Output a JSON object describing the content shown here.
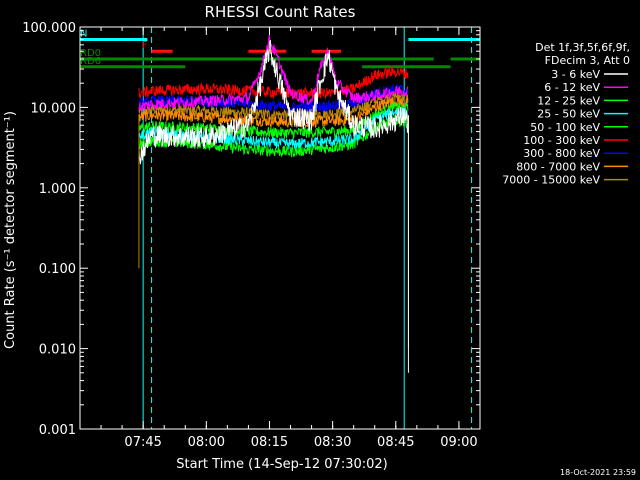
{
  "chart_data": {
    "type": "line",
    "title": "RHESSI Count Rates",
    "xlabel": "Start Time (14-Sep-12 07:30:02)",
    "ylabel": "Count Rate (s⁻¹ detector segment⁻¹)",
    "yscale": "log",
    "ylim": [
      0.001,
      100
    ],
    "xlim": [
      "07:30",
      "09:05"
    ],
    "x_ticks": [
      "07:45",
      "08:00",
      "08:15",
      "08:30",
      "08:45",
      "09:00"
    ],
    "y_ticks": [
      "0.001",
      "0.010",
      "0.100",
      "1.000",
      "10.000",
      "100.000"
    ],
    "legend_header": [
      "Det 1f,3f,5f,6f,9f,",
      "FDecim 3, Att 0"
    ],
    "footer": "18-Oct-2021 23:59",
    "series": [
      {
        "name": "3 - 6 keV",
        "color": "#ffffff",
        "x": [
          "07:44",
          "07:45",
          "07:47",
          "08:00",
          "08:10",
          "08:13",
          "08:15",
          "08:17",
          "08:20",
          "08:25",
          "08:27",
          "08:29",
          "08:31",
          "08:35",
          "08:40",
          "08:45",
          "08:47",
          "08:48"
        ],
        "y": [
          2.5,
          3.0,
          4.5,
          4.2,
          6.0,
          20,
          55,
          25,
          8,
          7,
          20,
          45,
          15,
          6,
          5.5,
          7,
          8,
          6
        ]
      },
      {
        "name": "6 - 12 keV",
        "color": "#ff00ff",
        "x": [
          "07:44",
          "07:47",
          "08:00",
          "08:10",
          "08:13",
          "08:15",
          "08:17",
          "08:20",
          "08:25",
          "08:27",
          "08:29",
          "08:31",
          "08:35",
          "08:40",
          "08:45",
          "08:48"
        ],
        "y": [
          10,
          11,
          12,
          13,
          30,
          70,
          40,
          15,
          12,
          30,
          50,
          20,
          13,
          14,
          16,
          16
        ]
      },
      {
        "name": "12 - 25 keV",
        "color": "#00ff00",
        "x": [
          "07:44",
          "07:47",
          "08:00",
          "08:10",
          "08:20",
          "08:30",
          "08:35",
          "08:40",
          "08:45",
          "08:48"
        ],
        "y": [
          3.5,
          3.8,
          3.5,
          3.0,
          2.8,
          3.2,
          3.5,
          5.5,
          7.0,
          6.5
        ]
      },
      {
        "name": "25 - 50 keV",
        "color": "#00ffff",
        "x": [
          "07:44",
          "07:47",
          "08:00",
          "08:10",
          "08:20",
          "08:30",
          "08:35",
          "08:40",
          "08:45",
          "08:48"
        ],
        "y": [
          4.5,
          4.8,
          4.3,
          3.8,
          3.5,
          3.8,
          4.0,
          7.0,
          9.0,
          8.5
        ]
      },
      {
        "name": "50 - 100 keV",
        "color": "#00ff00",
        "x": [
          "07:44",
          "07:47",
          "08:00",
          "08:10",
          "08:20",
          "08:30",
          "08:35",
          "08:40",
          "08:45",
          "08:48"
        ],
        "y": [
          5.5,
          5.8,
          5.5,
          5.0,
          4.8,
          5.0,
          5.2,
          8.0,
          10.0,
          9.5
        ]
      },
      {
        "name": "100 - 300 keV",
        "color": "#ff0000",
        "x": [
          "07:44",
          "07:47",
          "08:00",
          "08:10",
          "08:20",
          "08:30",
          "08:35",
          "08:40",
          "08:45",
          "08:48"
        ],
        "y": [
          15,
          16,
          17,
          16,
          15,
          15,
          17,
          25,
          28,
          26
        ]
      },
      {
        "name": "300 - 800 keV",
        "color": "#0000ff",
        "x": [
          "07:44",
          "07:47",
          "08:00",
          "08:10",
          "08:20",
          "08:30",
          "08:35",
          "08:40",
          "08:45",
          "08:48"
        ],
        "y": [
          11,
          12,
          12,
          11,
          10,
          10.5,
          11,
          15,
          17,
          16
        ]
      },
      {
        "name": "800 - 7000 keV",
        "color": "#ff8c00",
        "x": [
          "07:44",
          "07:47",
          "08:00",
          "08:10",
          "08:20",
          "08:30",
          "08:35",
          "08:40",
          "08:45",
          "08:48"
        ],
        "y": [
          7.5,
          8,
          7.5,
          7,
          6.5,
          6.8,
          7,
          10,
          12,
          11
        ]
      },
      {
        "name": "7000 - 15000 keV",
        "color": "#b8860b",
        "x": [
          "07:44",
          "07:47",
          "08:00",
          "08:10",
          "08:20",
          "08:30",
          "08:35",
          "08:40",
          "08:45",
          "08:48"
        ],
        "y": [
          9,
          9.5,
          9,
          8.5,
          8,
          8.5,
          9,
          12,
          14,
          13
        ]
      }
    ],
    "annotations": {
      "cyan_bars": [
        {
          "label": "N",
          "start": "07:30",
          "end": "07:46",
          "level": 70
        },
        {
          "label": "",
          "start": "08:48",
          "end": "09:05",
          "level": 70
        }
      ],
      "red_bars": [
        {
          "label": "F",
          "start": "07:47",
          "end": "07:52",
          "level": 50
        },
        {
          "label": "",
          "start": "08:10",
          "end": "08:19",
          "level": 50
        },
        {
          "label": "",
          "start": "08:25",
          "end": "08:32",
          "level": 50
        }
      ],
      "green_bars": [
        {
          "label": "RD0",
          "start": "07:30",
          "end": "08:54",
          "level": 40
        },
        {
          "label": "RD6",
          "start": "07:30",
          "end": "07:55",
          "level": 32
        },
        {
          "label": "",
          "start": "08:37",
          "end": "08:58",
          "level": 32
        },
        {
          "label": "",
          "start": "08:58",
          "end": "09:05",
          "level": 40
        }
      ],
      "vlines_solid": [
        "07:45",
        "08:47"
      ],
      "vlines_dashed": [
        "07:47",
        "09:03"
      ]
    }
  }
}
